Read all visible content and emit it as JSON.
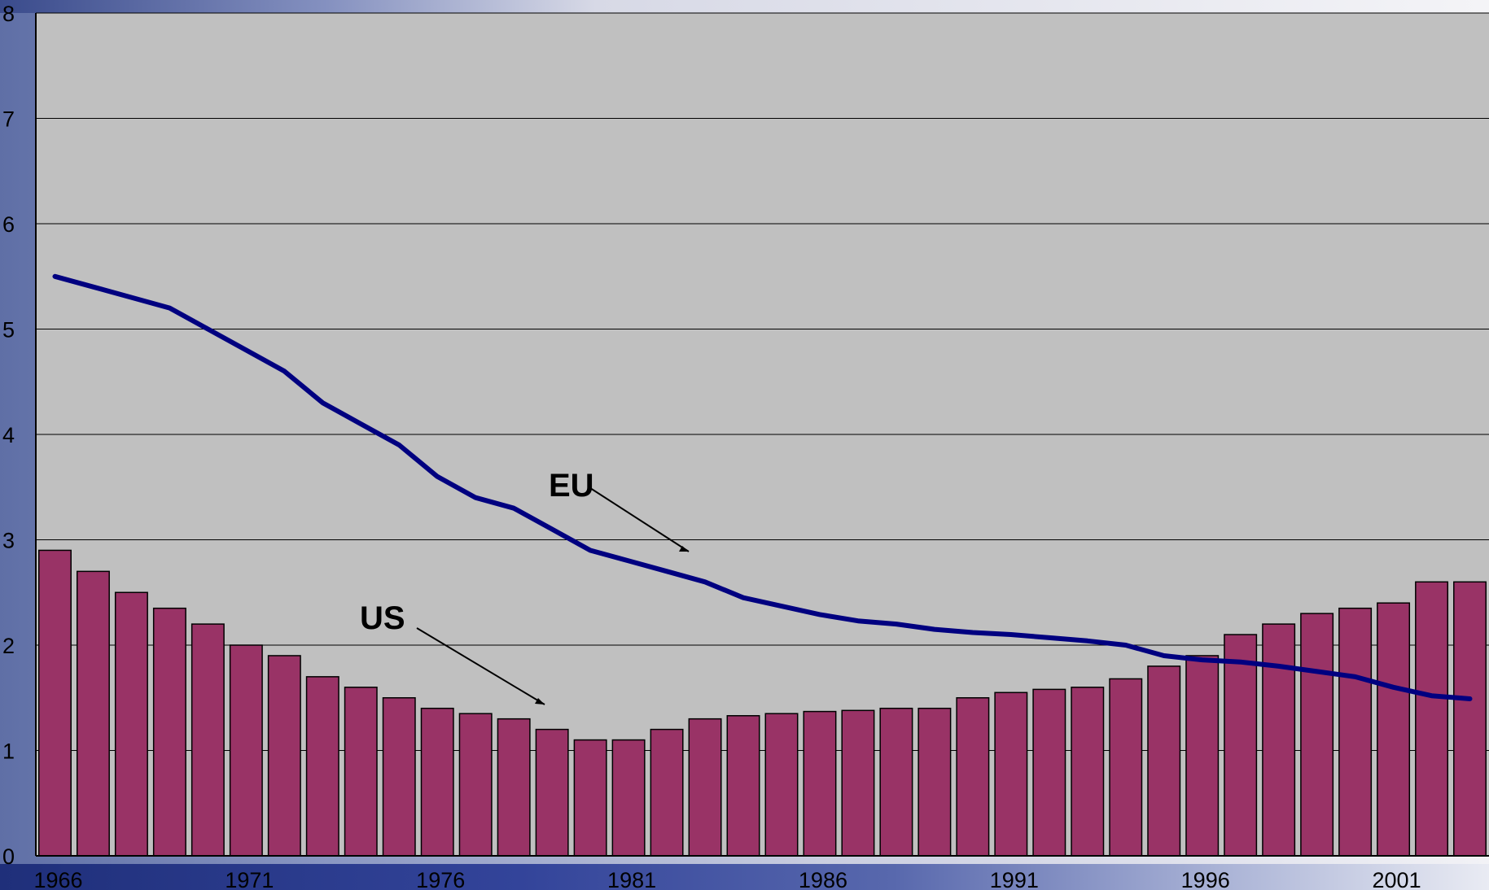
{
  "chart_data": {
    "type": "bar",
    "title": "",
    "xlabel": "",
    "ylabel": "",
    "ylim": [
      0,
      8
    ],
    "yticks": [
      "0",
      "1",
      "2",
      "3",
      "4",
      "5",
      "6",
      "7",
      "8"
    ],
    "xtick_labels": [
      "1966",
      "1971",
      "1976",
      "1981",
      "1986",
      "1991",
      "1996",
      "2001"
    ],
    "grid": true,
    "legend": "none",
    "categories": [
      "1966",
      "1967",
      "1968",
      "1969",
      "1970",
      "1971",
      "1972",
      "1973",
      "1974",
      "1975",
      "1976",
      "1977",
      "1978",
      "1979",
      "1980",
      "1981",
      "1982",
      "1983",
      "1984",
      "1985",
      "1986",
      "1987",
      "1988",
      "1989",
      "1990",
      "1991",
      "1992",
      "1993",
      "1994",
      "1995",
      "1996",
      "1997",
      "1998",
      "1999",
      "2000",
      "2001",
      "2002",
      "2003"
    ],
    "series": [
      {
        "name": "US",
        "kind": "bar",
        "color": "#993366",
        "values": [
          2.9,
          2.7,
          2.5,
          2.35,
          2.2,
          2.0,
          1.9,
          1.7,
          1.6,
          1.5,
          1.4,
          1.35,
          1.3,
          1.2,
          1.1,
          1.1,
          1.2,
          1.3,
          1.33,
          1.35,
          1.37,
          1.38,
          1.4,
          1.4,
          1.5,
          1.55,
          1.58,
          1.6,
          1.68,
          1.8,
          1.9,
          2.1,
          2.2,
          2.3,
          2.35,
          2.4,
          2.6,
          2.6
        ]
      },
      {
        "name": "EU",
        "kind": "line",
        "color": "#000080",
        "values": [
          5.5,
          5.4,
          5.3,
          5.2,
          5.0,
          4.8,
          4.6,
          4.3,
          4.1,
          3.9,
          3.6,
          3.4,
          3.3,
          3.1,
          2.9,
          2.8,
          2.7,
          2.6,
          2.45,
          2.37,
          2.29,
          2.23,
          2.2,
          2.15,
          2.12,
          2.1,
          2.07,
          2.04,
          2.0,
          1.9,
          1.86,
          1.84,
          1.8,
          1.75,
          1.7,
          1.6,
          1.52,
          1.49
        ]
      }
    ],
    "annotations": [
      {
        "text": "EU",
        "series": "EU"
      },
      {
        "text": "US",
        "series": "US"
      }
    ],
    "colors": {
      "plot_bg": "#c0c0c0",
      "bar": "#993366",
      "line": "#000080",
      "grid": "#000000"
    }
  }
}
